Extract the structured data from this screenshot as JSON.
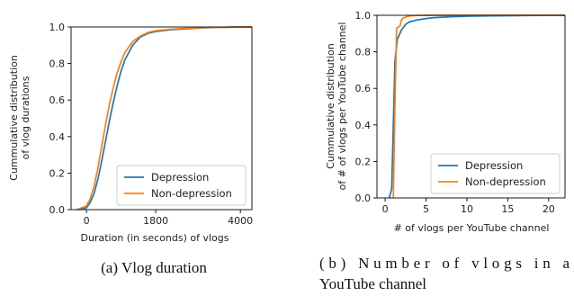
{
  "colors": {
    "depression": "#1f77b4",
    "non_depression": "#ff7f0e"
  },
  "captions": {
    "a": "(a) Vlog duration",
    "b_line1": "(b)  Number  of  vlogs  in  a",
    "b_line2": "YouTube channel"
  },
  "chart_data": [
    {
      "type": "line",
      "xlabel": "Duration (in seconds) of vlogs",
      "ylabel_lines": [
        "Cummulative distribution",
        "of vlog durations"
      ],
      "xlim": [
        -400,
        4300
      ],
      "ylim": [
        0,
        1.0
      ],
      "xticks": [
        0,
        1800,
        4000
      ],
      "xtick_labels": [
        "0",
        "1800",
        "4000"
      ],
      "yticks": [
        0.0,
        0.2,
        0.4,
        0.6,
        0.8,
        1.0
      ],
      "ytick_labels": [
        "0.0",
        "0.2",
        "0.4",
        "0.6",
        "0.8",
        "1.0"
      ],
      "legend": {
        "position": "lower-right",
        "entries": [
          "Depression",
          "Non-depression"
        ]
      },
      "series": [
        {
          "name": "Depression",
          "x": [
            -250,
            0,
            100,
            200,
            300,
            400,
            500,
            600,
            700,
            800,
            900,
            1000,
            1200,
            1400,
            1600,
            1800,
            2200,
            2600,
            3000,
            3500,
            4000,
            4300
          ],
          "y": [
            0,
            0.01,
            0.04,
            0.09,
            0.17,
            0.27,
            0.38,
            0.49,
            0.59,
            0.68,
            0.76,
            0.82,
            0.9,
            0.945,
            0.965,
            0.975,
            0.985,
            0.99,
            0.995,
            0.998,
            1.0,
            1.0
          ]
        },
        {
          "name": "Non-depression",
          "x": [
            -250,
            0,
            100,
            200,
            300,
            400,
            500,
            600,
            700,
            800,
            900,
            1000,
            1200,
            1400,
            1600,
            1800,
            2200,
            2600,
            3000,
            3500,
            4000,
            4300
          ],
          "y": [
            0,
            0.02,
            0.06,
            0.13,
            0.23,
            0.35,
            0.47,
            0.58,
            0.67,
            0.75,
            0.81,
            0.86,
            0.92,
            0.95,
            0.97,
            0.98,
            0.988,
            0.993,
            0.996,
            0.998,
            1.0,
            1.0
          ]
        }
      ]
    },
    {
      "type": "line",
      "xlabel": "# of vlogs per YouTube channel",
      "ylabel_lines": [
        "Cummulative distribution",
        "of # of vlogs per YouTube channel"
      ],
      "xlim": [
        -1,
        22
      ],
      "ylim": [
        0,
        1.0
      ],
      "xticks": [
        0,
        5,
        10,
        15,
        20
      ],
      "xtick_labels": [
        "0",
        "5",
        "10",
        "15",
        "20"
      ],
      "yticks": [
        0.0,
        0.2,
        0.4,
        0.6,
        0.8,
        1.0
      ],
      "ytick_labels": [
        "0.0",
        "0.2",
        "0.4",
        "0.6",
        "0.8",
        "1.0"
      ],
      "legend": {
        "position": "lower-right",
        "entries": [
          "Depression",
          "Non-depression"
        ]
      },
      "series": [
        {
          "name": "Depression",
          "x": [
            0.5,
            0.8,
            1.0,
            1.2,
            1.5,
            2.0,
            2.5,
            3.0,
            4.0,
            5.0,
            6.0,
            8.0,
            10.0,
            13.0,
            16.0,
            20.0,
            22.0
          ],
          "y": [
            0,
            0.05,
            0.4,
            0.75,
            0.87,
            0.92,
            0.95,
            0.965,
            0.975,
            0.982,
            0.987,
            0.992,
            0.995,
            0.997,
            0.998,
            1.0,
            1.0
          ]
        },
        {
          "name": "Non-depression",
          "x": [
            1.0,
            1.2,
            1.4,
            1.6,
            1.8,
            2.0,
            2.2,
            2.5,
            2.8,
            3.0,
            4.0,
            6.0,
            10.0,
            22.0
          ],
          "y": [
            0,
            0.5,
            0.93,
            0.935,
            0.94,
            0.975,
            0.985,
            0.99,
            0.995,
            0.997,
            0.999,
            1.0,
            1.0,
            1.0
          ]
        }
      ]
    }
  ]
}
